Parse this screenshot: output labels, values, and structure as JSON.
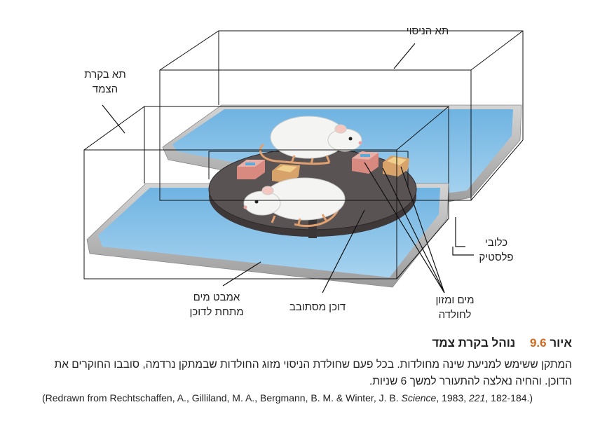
{
  "labels": {
    "experimental_chamber": "תא הניסוי",
    "control_chamber": "תא בקרת\nהצמד",
    "plastic_cages": "כלובי\nפלסטיק",
    "water_food": "מים ומזון\nלחולדה",
    "rotating_platform": "דוכן מסתובב",
    "water_bath": "אמבט מים\nמתחת לדוכן"
  },
  "caption": {
    "figure_word": "איור",
    "figure_number": "9.6",
    "title": "נוהל בקרת צמד",
    "body": "המתקן ששימש למניעת שינה מחולדות. בכל פעם שחולדת הניסוי מזוג החולדות שבמתקן נרדמה, סובבו החוקרים את הדוכן. והחיה נאלצה להתעורר למשך 6 שניות.",
    "credit_prefix": "(Redrawn from Rechtschaffen, A., Gilliland, M. A., Bergmann, B. M. & Winter, J. B. ",
    "credit_journal": "Science",
    "credit_mid": ", 1983, ",
    "credit_volume": "221",
    "credit_suffix": ", 182-184.)"
  },
  "colors": {
    "water": "#8cc6ea",
    "tray": "#b8b8b8",
    "platform": "#5a5354",
    "food_box": "#d88a80"
  }
}
